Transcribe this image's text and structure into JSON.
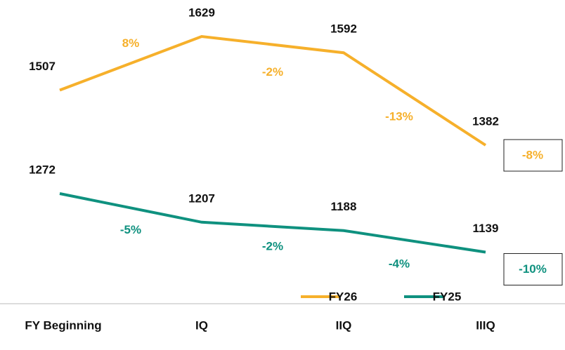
{
  "chart_data": {
    "type": "line",
    "categories": [
      "FY Beginning",
      "IQ",
      "IIQ",
      "IIIQ"
    ],
    "series": [
      {
        "name": "FY26",
        "color": "#F6B02B",
        "values": [
          1507,
          1629,
          1592,
          1382
        ],
        "changes": [
          8,
          -2,
          -13
        ],
        "change_labels": [
          "8%",
          "-2%",
          "-13%"
        ],
        "total_change": -8,
        "total_change_label": "-8%"
      },
      {
        "name": "FY25",
        "color": "#0F917F",
        "values": [
          1272,
          1207,
          1188,
          1139
        ],
        "changes": [
          -5,
          -2,
          -4
        ],
        "change_labels": [
          "-5%",
          "-2%",
          "-4%"
        ],
        "total_change": -10,
        "total_change_label": "-10%"
      }
    ]
  }
}
